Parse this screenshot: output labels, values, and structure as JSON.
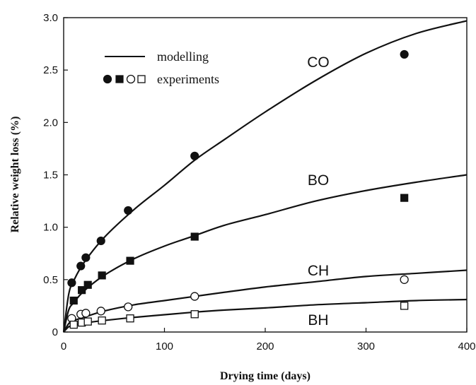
{
  "chart_data": {
    "type": "line",
    "title": "",
    "xlabel": "Drying time (days)",
    "ylabel": "Relative weight loss (%)",
    "xlim": [
      0,
      400
    ],
    "ylim": [
      0,
      3.0
    ],
    "x_ticks": [
      "0",
      "100",
      "200",
      "300",
      "400"
    ],
    "y_ticks": [
      "0",
      "0.5",
      "1.0",
      "1.5",
      "2.0",
      "2.5",
      "3.0"
    ],
    "grid": false,
    "legend": {
      "position": "top-left",
      "entries": [
        {
          "label": "modelling",
          "symbol": "line"
        },
        {
          "label": "experiments",
          "symbol": "markers"
        }
      ]
    },
    "series": [
      {
        "name": "CO",
        "marker": "filled-circle",
        "experiments": {
          "x": [
            8,
            17,
            22,
            37,
            64,
            130,
            338
          ],
          "y": [
            0.47,
            0.63,
            0.71,
            0.87,
            1.16,
            1.68,
            2.65
          ]
        },
        "modelling": {
          "x": [
            0,
            5,
            10,
            20,
            40,
            70,
            100,
            130,
            160,
            200,
            250,
            300,
            350,
            400
          ],
          "y": [
            0,
            0.36,
            0.49,
            0.66,
            0.9,
            1.17,
            1.4,
            1.64,
            1.84,
            2.1,
            2.4,
            2.66,
            2.85,
            2.97
          ]
        }
      },
      {
        "name": "BO",
        "marker": "filled-square",
        "experiments": {
          "x": [
            10,
            18,
            24,
            38,
            66,
            130,
            338
          ],
          "y": [
            0.3,
            0.4,
            0.45,
            0.54,
            0.68,
            0.91,
            1.28
          ]
        },
        "modelling": {
          "x": [
            0,
            5,
            10,
            20,
            40,
            70,
            100,
            130,
            160,
            200,
            250,
            300,
            350,
            400
          ],
          "y": [
            0,
            0.21,
            0.28,
            0.39,
            0.54,
            0.7,
            0.82,
            0.92,
            1.02,
            1.12,
            1.25,
            1.35,
            1.43,
            1.5
          ]
        }
      },
      {
        "name": "CH",
        "marker": "open-circle",
        "experiments": {
          "x": [
            8,
            17,
            22,
            37,
            64,
            130,
            338
          ],
          "y": [
            0.13,
            0.17,
            0.18,
            0.2,
            0.24,
            0.34,
            0.5
          ]
        },
        "modelling": {
          "x": [
            0,
            5,
            10,
            20,
            40,
            70,
            100,
            130,
            160,
            200,
            250,
            300,
            350,
            400
          ],
          "y": [
            0,
            0.08,
            0.11,
            0.14,
            0.2,
            0.26,
            0.3,
            0.34,
            0.38,
            0.43,
            0.48,
            0.53,
            0.56,
            0.59
          ]
        }
      },
      {
        "name": "BH",
        "marker": "open-square",
        "experiments": {
          "x": [
            10,
            18,
            24,
            38,
            66,
            130,
            338
          ],
          "y": [
            0.07,
            0.09,
            0.1,
            0.11,
            0.13,
            0.17,
            0.25
          ]
        },
        "modelling": {
          "x": [
            0,
            5,
            10,
            20,
            40,
            70,
            100,
            130,
            160,
            200,
            250,
            300,
            350,
            400
          ],
          "y": [
            0,
            0.05,
            0.065,
            0.085,
            0.11,
            0.14,
            0.165,
            0.19,
            0.21,
            0.23,
            0.26,
            0.28,
            0.3,
            0.31
          ]
        }
      }
    ]
  }
}
